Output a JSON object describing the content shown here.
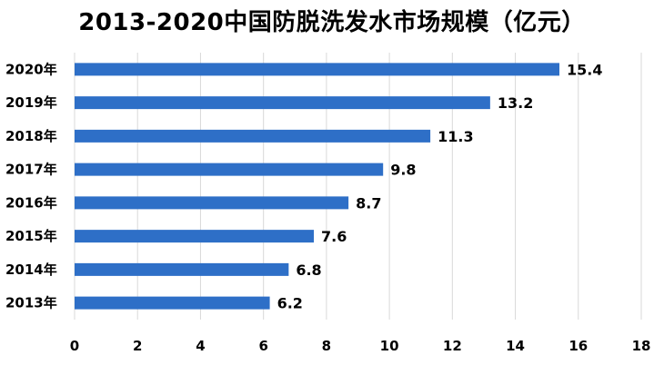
{
  "chart_data": {
    "type": "bar",
    "orientation": "horizontal",
    "title": "2013-2020中国防脱洗发水市场规模（亿元）",
    "categories": [
      "2020年",
      "2019年",
      "2018年",
      "2017年",
      "2016年",
      "2015年",
      "2014年",
      "2013年"
    ],
    "values": [
      15.4,
      13.2,
      11.3,
      9.8,
      8.7,
      7.6,
      6.8,
      6.2
    ],
    "data_labels": [
      "15.4",
      "13.2",
      "11.3",
      "9.8",
      "8.7",
      "7.6",
      "6.8",
      "6.2"
    ],
    "xlim": [
      0,
      18
    ],
    "xticks": [
      0,
      2,
      4,
      6,
      8,
      10,
      12,
      14,
      16,
      18
    ],
    "xtick_labels": [
      "0",
      "2",
      "4",
      "6",
      "8",
      "10",
      "12",
      "14",
      "16",
      "18"
    ],
    "xlabel": "",
    "ylabel": "",
    "grid": "vertical",
    "legend": "none",
    "bar_color": "#2E6FC7",
    "grid_color": "#D9D9D9"
  }
}
